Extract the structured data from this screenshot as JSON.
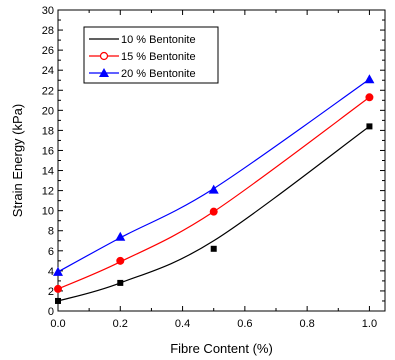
{
  "chart_data": {
    "type": "line",
    "title": "",
    "xlabel": "Fibre Content (%)",
    "ylabel": "Strain Energy (kPa)",
    "xlim": [
      0,
      1.05
    ],
    "ylim": [
      0,
      30
    ],
    "x_ticks": [
      "0.0",
      "0.2",
      "0.4",
      "0.6",
      "0.8",
      "1.0"
    ],
    "y_ticks": [
      "0",
      "2",
      "4",
      "6",
      "8",
      "10",
      "12",
      "14",
      "16",
      "18",
      "20",
      "22",
      "24",
      "26",
      "28",
      "30"
    ],
    "grid": false,
    "legend_position": "top-left",
    "series": [
      {
        "name": "10 % Bentonite",
        "color": "#000000",
        "marker": "square",
        "x": [
          0.0,
          0.2,
          0.5,
          1.0
        ],
        "y": [
          1.0,
          2.8,
          6.2,
          18.4
        ],
        "fit": [
          [
            0.0,
            1.0
          ],
          [
            0.2,
            2.8
          ],
          [
            0.5,
            7.0
          ],
          [
            1.0,
            18.4
          ]
        ]
      },
      {
        "name": "15 % Bentonite",
        "color": "#ff0000",
        "marker": "circle",
        "x": [
          0.0,
          0.2,
          0.5,
          1.0
        ],
        "y": [
          2.2,
          5.0,
          9.9,
          21.3
        ],
        "fit": [
          [
            0.0,
            2.2
          ],
          [
            0.2,
            4.9
          ],
          [
            0.5,
            9.9
          ],
          [
            1.0,
            21.3
          ]
        ]
      },
      {
        "name": "20 % Bentonite",
        "color": "#0000ff",
        "marker": "triangle",
        "x": [
          0.0,
          0.2,
          0.5,
          1.0
        ],
        "y": [
          3.9,
          7.4,
          12.1,
          23.1
        ],
        "fit": [
          [
            0.0,
            3.9
          ],
          [
            0.2,
            7.3
          ],
          [
            0.5,
            12.2
          ],
          [
            1.0,
            23.1
          ]
        ]
      }
    ]
  }
}
